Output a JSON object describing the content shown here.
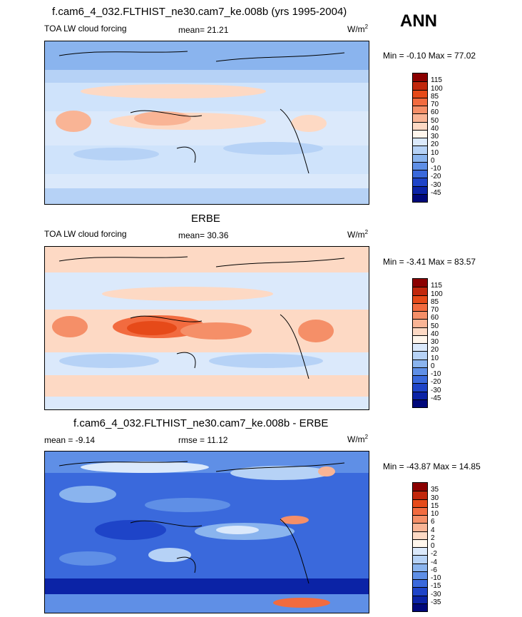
{
  "season": "ANN",
  "panels": [
    {
      "title": "f.cam6_4_032.FLTHIST_ne30.cam7_ke.008b (yrs 1995-2004)",
      "left_label": "TOA LW cloud forcing",
      "stat_label": "mean=  21.21",
      "unit_base": "W/m",
      "unit_exp": "2",
      "minmax": "Min =  -0.10 Max =  77.02",
      "colorbar": {
        "labels": [
          "115",
          "100",
          "85",
          "70",
          "60",
          "50",
          "40",
          "30",
          "20",
          "10",
          "0",
          "-10",
          "-20",
          "-30",
          "-45"
        ],
        "colors": [
          "#8b0000",
          "#c1270c",
          "#e64a19",
          "#f26b3f",
          "#f58f68",
          "#f9b495",
          "#fdd9c4",
          "#fff6ec",
          "#dbe9fb",
          "#b6d2f6",
          "#8ab4ee",
          "#5f8fe6",
          "#3a69dc",
          "#1e44c8",
          "#0b23a6",
          "#00087a"
        ]
      }
    },
    {
      "title": "ERBE",
      "left_label": "TOA LW cloud forcing",
      "stat_label": "mean=  30.36",
      "unit_base": "W/m",
      "unit_exp": "2",
      "minmax": "Min =  -3.41 Max =  83.57",
      "colorbar": {
        "labels": [
          "115",
          "100",
          "85",
          "70",
          "60",
          "50",
          "40",
          "30",
          "20",
          "10",
          "0",
          "-10",
          "-20",
          "-30",
          "-45"
        ],
        "colors": [
          "#8b0000",
          "#c1270c",
          "#e64a19",
          "#f26b3f",
          "#f58f68",
          "#f9b495",
          "#fdd9c4",
          "#fff6ec",
          "#dbe9fb",
          "#b6d2f6",
          "#8ab4ee",
          "#5f8fe6",
          "#3a69dc",
          "#1e44c8",
          "#0b23a6",
          "#00087a"
        ]
      }
    },
    {
      "title": "f.cam6_4_032.FLTHIST_ne30.cam7_ke.008b - ERBE",
      "left_label": "mean =  -9.14",
      "stat_label": "rmse =  11.12",
      "unit_base": "W/m",
      "unit_exp": "2",
      "minmax": "Min = -43.87 Max =  14.85",
      "colorbar": {
        "labels": [
          "35",
          "30",
          "15",
          "10",
          "6",
          "4",
          "2",
          "0",
          "-2",
          "-4",
          "-6",
          "-10",
          "-15",
          "-30",
          "-35"
        ],
        "colors": [
          "#8b0000",
          "#c1270c",
          "#e64a19",
          "#f26b3f",
          "#f58f68",
          "#f9b495",
          "#fdd9c4",
          "#fff6ec",
          "#dbe9fb",
          "#b6d2f6",
          "#8ab4ee",
          "#5f8fe6",
          "#3a69dc",
          "#1e44c8",
          "#0b23a6",
          "#00087a"
        ]
      }
    }
  ],
  "chart_data": [
    {
      "type": "heatmap",
      "title": "f.cam6_4_032.FLTHIST_ne30.cam7_ke.008b (yrs 1995-2004)",
      "variable": "TOA LW cloud forcing",
      "units": "W/m2",
      "mean": 21.21,
      "min": -0.1,
      "max": 77.02,
      "contour_levels": [
        -45,
        -30,
        -20,
        -10,
        0,
        10,
        20,
        30,
        40,
        50,
        60,
        70,
        85,
        100,
        115
      ]
    },
    {
      "type": "heatmap",
      "title": "ERBE",
      "variable": "TOA LW cloud forcing",
      "units": "W/m2",
      "mean": 30.36,
      "min": -3.41,
      "max": 83.57,
      "contour_levels": [
        -45,
        -30,
        -20,
        -10,
        0,
        10,
        20,
        30,
        40,
        50,
        60,
        70,
        85,
        100,
        115
      ]
    },
    {
      "type": "heatmap",
      "title": "f.cam6_4_032.FLTHIST_ne30.cam7_ke.008b - ERBE",
      "units": "W/m2",
      "mean": -9.14,
      "rmse": 11.12,
      "min": -43.87,
      "max": 14.85,
      "contour_levels": [
        -35,
        -30,
        -15,
        -10,
        -6,
        -4,
        -2,
        0,
        2,
        4,
        6,
        10,
        15,
        30,
        35
      ]
    }
  ]
}
